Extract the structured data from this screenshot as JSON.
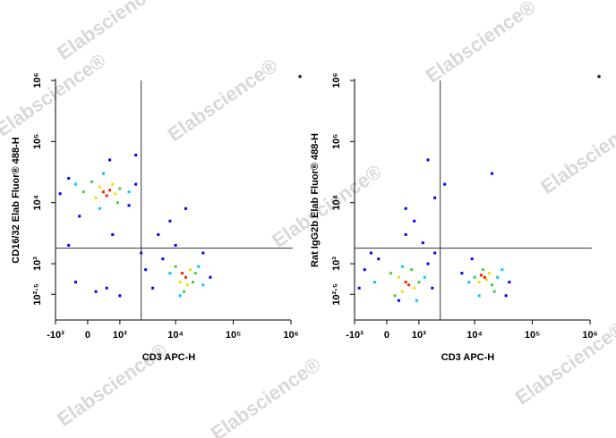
{
  "watermark": "Elabscience®",
  "chart_data": [
    {
      "type": "scatter",
      "corner_mark": "*",
      "x_label": "CD3 APC-H",
      "y_label": "CD16/32 Elab Fluor® 488-H",
      "xlim": [
        -1000,
        1000000
      ],
      "ylim": [
        120,
        1000000
      ],
      "xticks": [
        {
          "value": -1000,
          "label": "-10³"
        },
        0,
        {
          "value": 1000,
          "label": "10³"
        },
        {
          "value": 10000,
          "label": "10⁴"
        },
        {
          "value": 100000,
          "label": "10⁵"
        },
        {
          "value": 1000000,
          "label": "10⁶"
        }
      ],
      "yticks": [
        {
          "value": 316,
          "label": "10²·⁵"
        },
        {
          "value": 1000,
          "label": "10³"
        },
        {
          "value": 10000,
          "label": "10⁴"
        },
        {
          "value": 100000,
          "label": "10⁵"
        },
        {
          "value": 1000000,
          "label": "10⁶"
        }
      ],
      "gate_x": 2500,
      "gate_y": 1800,
      "series": [
        {
          "color": "#0000ff",
          "x": [
            -500,
            2000,
            -200,
            1500,
            -800,
            2500,
            5000,
            8000,
            3000,
            6000,
            40000,
            500,
            200,
            -300,
            1000,
            30000,
            4000,
            10000,
            -500,
            700,
            15000,
            2000,
            600
          ],
          "values": [
            25000,
            20000,
            6000,
            9000,
            14000,
            1500,
            3000,
            5000,
            800,
            1200,
            600,
            400,
            350,
            500,
            300,
            1500,
            400,
            2000,
            2000,
            3000,
            8000,
            60000,
            50000
          ]
        },
        {
          "color": "#00c8ff",
          "x": [
            -300,
            1500,
            400,
            300,
            8000,
            25000,
            12000,
            30000
          ],
          "values": [
            20000,
            15000,
            30000,
            8000,
            700,
            900,
            300,
            450
          ]
        },
        {
          "color": "#40d040",
          "x": [
            100,
            1000,
            -100,
            900,
            10000,
            20000,
            14000,
            22000
          ],
          "values": [
            22000,
            17000,
            15000,
            10000,
            900,
            500,
            350,
            700
          ]
        },
        {
          "color": "#f0e000",
          "x": [
            300,
            800,
            200,
            700,
            12000,
            18000,
            16000
          ],
          "values": [
            18000,
            14000,
            12000,
            20000,
            500,
            800,
            450
          ]
        },
        {
          "color": "#ff2000",
          "x": [
            400,
            600,
            500,
            15000,
            13000
          ],
          "values": [
            15000,
            16000,
            13000,
            600,
            700
          ]
        }
      ]
    },
    {
      "type": "scatter",
      "corner_mark": "*",
      "x_label": "CD3 APC-H",
      "y_label": "Rat IgG2b Elab Fluor® 488-H",
      "xlim": [
        -1000,
        1000000
      ],
      "ylim": [
        120,
        1000000
      ],
      "xticks": [
        {
          "value": -1000,
          "label": "-10³"
        },
        0,
        {
          "value": 1000,
          "label": "10³"
        },
        {
          "value": 10000,
          "label": "10⁴"
        },
        {
          "value": 100000,
          "label": "10⁵"
        },
        {
          "value": 1000000,
          "label": "10⁶"
        }
      ],
      "yticks": [
        {
          "value": 316,
          "label": "10²·⁵"
        },
        {
          "value": 1000,
          "label": "10³"
        },
        {
          "value": 10000,
          "label": "10⁴"
        },
        {
          "value": 100000,
          "label": "10⁵"
        },
        {
          "value": 1000000,
          "label": "10⁶"
        }
      ],
      "gate_x": 2500,
      "gate_y": 1800,
      "series": [
        {
          "color": "#0000ff",
          "x": [
            -600,
            1800,
            -200,
            1500,
            -800,
            300,
            2000,
            500,
            40000,
            6000,
            35000,
            9000,
            500,
            2000,
            800,
            3000,
            1500,
            20000,
            -400,
            1200
          ],
          "values": [
            800,
            400,
            1200,
            1000,
            400,
            250,
            1500,
            3000,
            500,
            700,
            300,
            1200,
            8000,
            12000,
            5000,
            20000,
            50000,
            30000,
            1500,
            2200
          ]
        },
        {
          "color": "#00c8ff",
          "x": [
            -300,
            1300,
            400,
            900,
            8000,
            25000,
            12000,
            30000
          ],
          "values": [
            500,
            600,
            900,
            250,
            500,
            600,
            300,
            800
          ]
        },
        {
          "color": "#40d040",
          "x": [
            100,
            1000,
            200,
            700,
            10000,
            20000,
            14000,
            22000
          ],
          "values": [
            700,
            500,
            300,
            800,
            600,
            450,
            800,
            350
          ]
        },
        {
          "color": "#f0e000",
          "x": [
            300,
            800,
            400,
            12000,
            18000,
            16000
          ],
          "values": [
            600,
            400,
            350,
            500,
            700,
            550
          ]
        },
        {
          "color": "#ff2000",
          "x": [
            500,
            600,
            15000,
            13000
          ],
          "values": [
            500,
            450,
            600,
            650
          ]
        }
      ]
    }
  ]
}
